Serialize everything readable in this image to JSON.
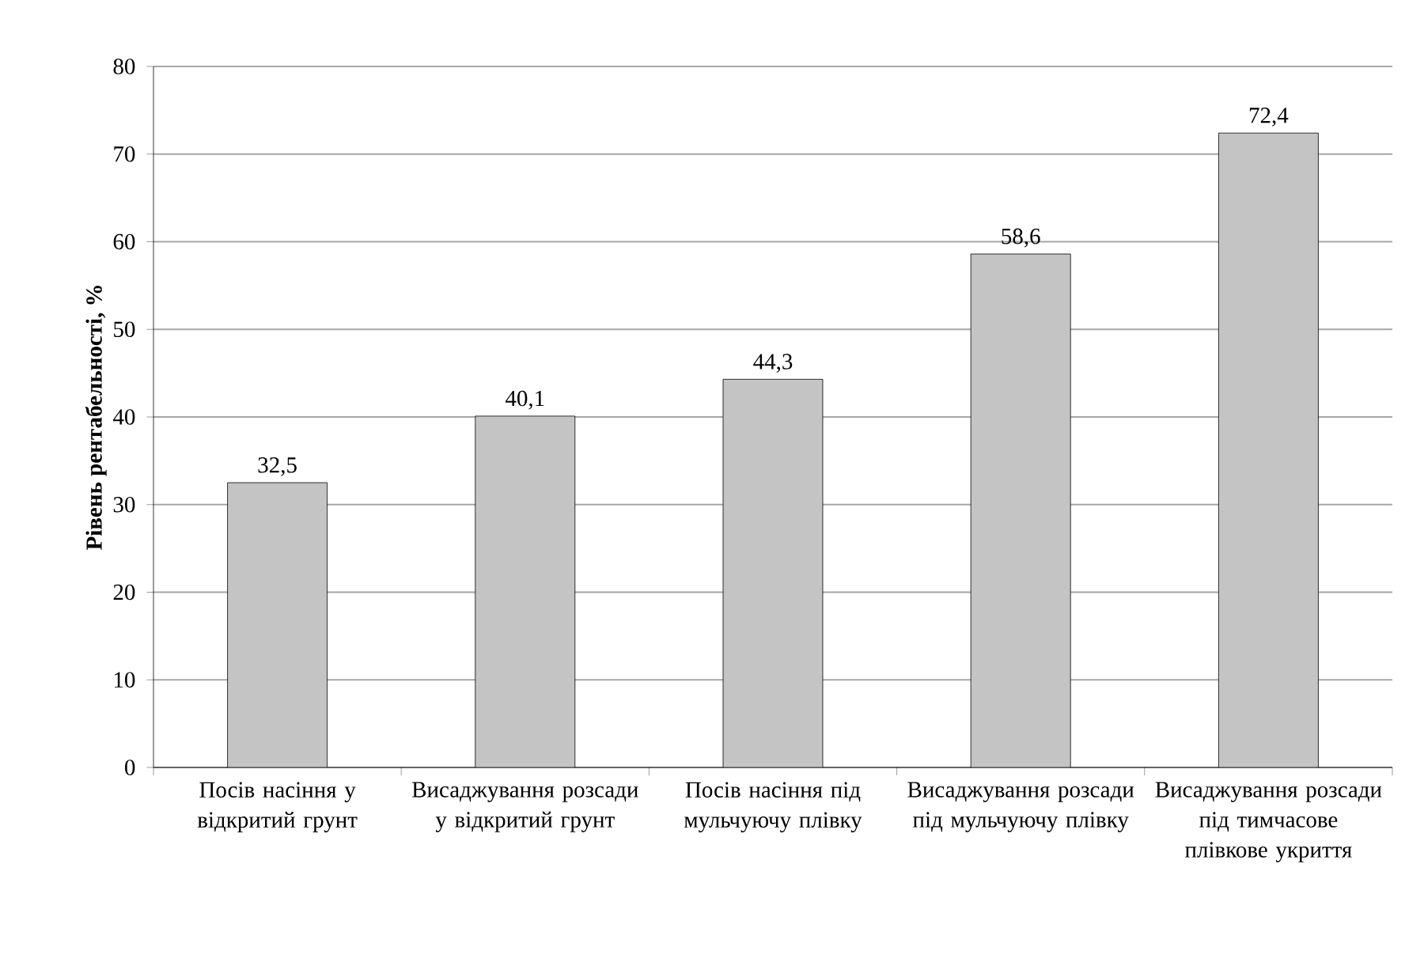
{
  "chart_data": {
    "type": "bar",
    "ylabel": "Рівень рентабельності, %",
    "categories": [
      "Посів насіння у відкритий грунт",
      "Висаджування розсади у відкритий грунт",
      "Посів насіння під мульчуючу плівку",
      "Висаджування розсади під мульчуючу плівку",
      "Висаджування розсади під тимчасове плівкове укриття"
    ],
    "values": [
      32.5,
      40.1,
      44.3,
      58.6,
      72.4
    ],
    "value_labels": [
      "32,5",
      "40,1",
      "44,3",
      "58,6",
      "72,4"
    ],
    "color": "#c4c4c4",
    "ylim": [
      0,
      80
    ],
    "yticks": [
      0,
      10,
      20,
      30,
      40,
      50,
      60,
      70,
      80
    ],
    "grid": "y"
  }
}
